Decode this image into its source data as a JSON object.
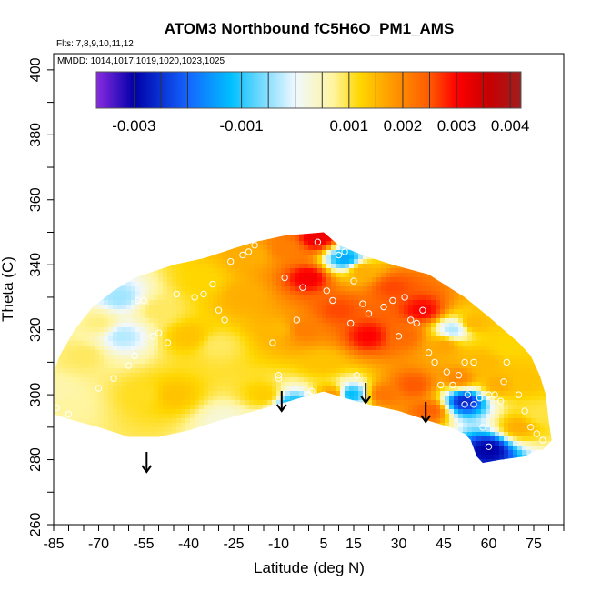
{
  "chart_data": {
    "type": "heatmap",
    "title": "ATOM3 Northbound fC5H6O_PM1_AMS",
    "notes": {
      "flights": "Flts: 7,8,9,10,11,12",
      "mmdd": "MMDD: 1014,1017,1019,1020,1023,1025"
    },
    "xlabel": "Latitude (deg N)",
    "ylabel": "Theta (C)",
    "xlim": [
      -85,
      85
    ],
    "ylim": [
      260,
      405
    ],
    "x_ticks": [
      -85,
      -70,
      -55,
      -40,
      -25,
      -10,
      5,
      15,
      30,
      45,
      60,
      75
    ],
    "x_tick_labels": [
      "-85",
      "-70",
      "-55",
      "-40",
      "-25",
      "-10",
      "5",
      "15",
      "30",
      "45",
      "60",
      "75"
    ],
    "y_ticks": [
      260,
      280,
      300,
      320,
      340,
      360,
      380,
      400
    ],
    "y_tick_labels": [
      "260",
      "280",
      "300",
      "320",
      "340",
      "360",
      "380",
      "400"
    ],
    "colorbar": {
      "min": -0.0037,
      "max": 0.0042,
      "tick_values": [
        -0.003,
        -0.001,
        0.001,
        0.002,
        0.003,
        0.004
      ],
      "tick_labels": [
        "-0.003",
        "-0.001",
        "0.001",
        "0.002",
        "0.003",
        "0.004"
      ],
      "divider_values": [
        -0.003,
        -0.0025,
        -0.002,
        -0.001,
        -0.0005,
        0.0,
        0.0005,
        0.001,
        0.0015,
        0.002,
        0.0025,
        0.003,
        0.0035,
        0.004
      ],
      "stops": [
        {
          "v": -0.0037,
          "c": "#8a2be2"
        },
        {
          "v": -0.003,
          "c": "#0000a8"
        },
        {
          "v": -0.002,
          "c": "#1464ff"
        },
        {
          "v": -0.0012,
          "c": "#00bfff"
        },
        {
          "v": 0.0,
          "c": "#f0f8ff"
        },
        {
          "v": 0.0007,
          "c": "#fff5a0"
        },
        {
          "v": 0.0012,
          "c": "#ffd700"
        },
        {
          "v": 0.0018,
          "c": "#ff9a00"
        },
        {
          "v": 0.0025,
          "c": "#ff5a00"
        },
        {
          "v": 0.003,
          "c": "#ff0000"
        },
        {
          "v": 0.0036,
          "c": "#c80000"
        },
        {
          "v": 0.0042,
          "c": "#a01e1e"
        }
      ]
    },
    "domain_outline": [
      [
        -87,
        296
      ],
      [
        -86,
        304
      ],
      [
        -83,
        312
      ],
      [
        -78,
        320
      ],
      [
        -72,
        327
      ],
      [
        -65,
        332
      ],
      [
        -58,
        336
      ],
      [
        -45,
        340
      ],
      [
        -35,
        342
      ],
      [
        -25,
        345
      ],
      [
        -18,
        347
      ],
      [
        -8,
        349
      ],
      [
        5,
        350
      ],
      [
        10,
        346
      ],
      [
        18,
        343
      ],
      [
        28,
        340
      ],
      [
        40,
        337
      ],
      [
        52,
        330
      ],
      [
        60,
        324
      ],
      [
        65,
        320
      ],
      [
        70,
        316
      ],
      [
        74,
        312
      ],
      [
        77,
        306
      ],
      [
        79,
        300
      ],
      [
        80,
        292
      ],
      [
        81,
        286
      ],
      [
        78,
        283
      ],
      [
        76,
        283
      ],
      [
        72,
        281
      ],
      [
        64,
        280
      ],
      [
        58,
        279
      ],
      [
        56,
        281
      ],
      [
        54,
        286
      ],
      [
        52,
        288
      ],
      [
        47,
        290
      ],
      [
        40,
        292
      ],
      [
        30,
        295
      ],
      [
        20,
        297
      ],
      [
        12,
        299
      ],
      [
        5,
        301
      ],
      [
        -3,
        299
      ],
      [
        -10,
        297
      ],
      [
        -18,
        295
      ],
      [
        -30,
        292
      ],
      [
        -40,
        289
      ],
      [
        -50,
        287
      ],
      [
        -60,
        287
      ],
      [
        -70,
        290
      ],
      [
        -78,
        292
      ],
      [
        -85,
        294
      ]
    ],
    "field_points": [
      {
        "x": -80,
        "y": 297,
        "v": 0.0007
      },
      {
        "x": -75,
        "y": 312,
        "v": 0.0009
      },
      {
        "x": -70,
        "y": 322,
        "v": 0.0008
      },
      {
        "x": -63,
        "y": 330,
        "v": -0.0004
      },
      {
        "x": -62,
        "y": 318,
        "v": -0.0003
      },
      {
        "x": -55,
        "y": 300,
        "v": 0.0011
      },
      {
        "x": -50,
        "y": 326,
        "v": 0.0009
      },
      {
        "x": -45,
        "y": 300,
        "v": 0.0014
      },
      {
        "x": -40,
        "y": 318,
        "v": 0.0014
      },
      {
        "x": -35,
        "y": 335,
        "v": 0.0012
      },
      {
        "x": -30,
        "y": 315,
        "v": 0.0009
      },
      {
        "x": -28,
        "y": 292,
        "v": 0.0003
      },
      {
        "x": -22,
        "y": 330,
        "v": 0.0016
      },
      {
        "x": -18,
        "y": 343,
        "v": 0.0016
      },
      {
        "x": -15,
        "y": 300,
        "v": 0.0013
      },
      {
        "x": -10,
        "y": 320,
        "v": 0.0015
      },
      {
        "x": -8,
        "y": 345,
        "v": 0.0021
      },
      {
        "x": -5,
        "y": 297,
        "v": -0.0012
      },
      {
        "x": -2,
        "y": 320,
        "v": 0.0021
      },
      {
        "x": 0,
        "y": 336,
        "v": 0.0031
      },
      {
        "x": 3,
        "y": 348,
        "v": 0.0032
      },
      {
        "x": 5,
        "y": 310,
        "v": 0.0014
      },
      {
        "x": 8,
        "y": 300,
        "v": 0.0018
      },
      {
        "x": 10,
        "y": 326,
        "v": 0.0026
      },
      {
        "x": 12,
        "y": 342,
        "v": -0.0014
      },
      {
        "x": 14,
        "y": 300,
        "v": -0.0012
      },
      {
        "x": 18,
        "y": 338,
        "v": 0.0016
      },
      {
        "x": 20,
        "y": 318,
        "v": 0.003
      },
      {
        "x": 25,
        "y": 300,
        "v": 0.0022
      },
      {
        "x": 28,
        "y": 333,
        "v": 0.0026
      },
      {
        "x": 32,
        "y": 318,
        "v": 0.0023
      },
      {
        "x": 35,
        "y": 303,
        "v": 0.0025
      },
      {
        "x": 38,
        "y": 326,
        "v": 0.003
      },
      {
        "x": 40,
        "y": 295,
        "v": 0.0024
      },
      {
        "x": 45,
        "y": 315,
        "v": 0.0017
      },
      {
        "x": 48,
        "y": 320,
        "v": -0.0003
      },
      {
        "x": 50,
        "y": 305,
        "v": 0.002
      },
      {
        "x": 52,
        "y": 298,
        "v": -0.0026
      },
      {
        "x": 55,
        "y": 322,
        "v": 0.0015
      },
      {
        "x": 58,
        "y": 310,
        "v": 0.0015
      },
      {
        "x": 60,
        "y": 283,
        "v": -0.003
      },
      {
        "x": 63,
        "y": 303,
        "v": 0.0016
      },
      {
        "x": 66,
        "y": 315,
        "v": 0.0012
      },
      {
        "x": 72,
        "y": 304,
        "v": 0.0014
      },
      {
        "x": 77,
        "y": 294,
        "v": 0.001
      },
      {
        "x": -84,
        "y": 300,
        "v": 0.0006
      },
      {
        "x": 70,
        "y": 290,
        "v": 0.0016
      }
    ],
    "observations": [
      [
        -84,
        296
      ],
      [
        -80,
        294
      ],
      [
        -70,
        302
      ],
      [
        -65,
        305
      ],
      [
        -60,
        309
      ],
      [
        -58,
        312
      ],
      [
        -57,
        329
      ],
      [
        -55,
        329
      ],
      [
        -52,
        318
      ],
      [
        -50,
        319
      ],
      [
        -47,
        316
      ],
      [
        -44,
        331
      ],
      [
        -38,
        330
      ],
      [
        -35,
        331
      ],
      [
        -32,
        334
      ],
      [
        -30,
        326
      ],
      [
        -28,
        323
      ],
      [
        -26,
        341
      ],
      [
        -22,
        343
      ],
      [
        -20,
        344
      ],
      [
        -18,
        346
      ],
      [
        -12,
        316
      ],
      [
        -10,
        305
      ],
      [
        -10,
        306
      ],
      [
        -8,
        336
      ],
      [
        -4,
        323
      ],
      [
        -2,
        333
      ],
      [
        0,
        300
      ],
      [
        1,
        301
      ],
      [
        3,
        347
      ],
      [
        6,
        332
      ],
      [
        8,
        329
      ],
      [
        10,
        343
      ],
      [
        12,
        344
      ],
      [
        14,
        322
      ],
      [
        15,
        335
      ],
      [
        16,
        306
      ],
      [
        18,
        328
      ],
      [
        20,
        325
      ],
      [
        25,
        327
      ],
      [
        28,
        329
      ],
      [
        30,
        318
      ],
      [
        32,
        330
      ],
      [
        34,
        323
      ],
      [
        36,
        322
      ],
      [
        38,
        326
      ],
      [
        40,
        313
      ],
      [
        42,
        310
      ],
      [
        44,
        303
      ],
      [
        46,
        307
      ],
      [
        48,
        303
      ],
      [
        50,
        306
      ],
      [
        52,
        310
      ],
      [
        53,
        300
      ],
      [
        55,
        310
      ],
      [
        55,
        297
      ],
      [
        57,
        299
      ],
      [
        58,
        290
      ],
      [
        60,
        300
      ],
      [
        62,
        300
      ],
      [
        64,
        298
      ],
      [
        65,
        304
      ],
      [
        66,
        310
      ],
      [
        70,
        300
      ],
      [
        72,
        295
      ],
      [
        74,
        290
      ],
      [
        76,
        288
      ],
      [
        78,
        286
      ],
      [
        60,
        284
      ],
      [
        52,
        297
      ]
    ],
    "arrows_at_latitude": [
      -54,
      -9,
      19,
      39
    ]
  }
}
